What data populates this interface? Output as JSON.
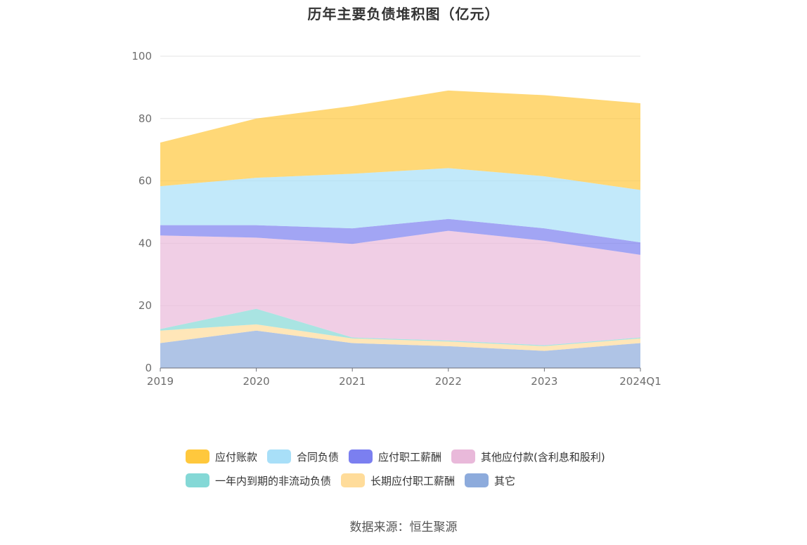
{
  "title": "历年主要负债堆积图（亿元）",
  "source": "数据来源：恒生聚源",
  "colors": {
    "应付账款": "#ffc83d",
    "合同负债": "#a8dff8",
    "应付职工薪酬": "#7b7ff0",
    "其他应付款": "#e9b9da",
    "一年内到期的非流动负债": "#84d8d6",
    "长期应付职工薪酬": "#ffdc9a",
    "其它": "#8dabdc"
  },
  "legend": [
    {
      "label": "应付账款",
      "color": "#ffc83d"
    },
    {
      "label": "合同负债",
      "color": "#a8dff8"
    },
    {
      "label": "应付职工薪酬",
      "color": "#7b7ff0"
    },
    {
      "label": "其他应付款(含利息和股利)",
      "color": "#e9b9da"
    },
    {
      "label": "一年内到期的非流动负债",
      "color": "#84d8d6"
    },
    {
      "label": "长期应付职工薪酬",
      "color": "#ffdc9a"
    },
    {
      "label": "其它",
      "color": "#8dabdc"
    }
  ],
  "chart_data": {
    "type": "area",
    "stacked": true,
    "categories": [
      "2019",
      "2020",
      "2021",
      "2022",
      "2023",
      "2024Q1"
    ],
    "ylim": [
      0,
      100
    ],
    "yticks": [
      0,
      20,
      40,
      60,
      80,
      100
    ],
    "grid": true,
    "legend_position": "bottom",
    "series": [
      {
        "name": "其它",
        "values": [
          8.0,
          12.0,
          8.0,
          7.0,
          5.5,
          8.0
        ]
      },
      {
        "name": "长期应付职工薪酬",
        "values": [
          4.0,
          2.0,
          1.5,
          1.5,
          1.5,
          1.5
        ]
      },
      {
        "name": "一年内到期的非流动负债",
        "values": [
          0.5,
          5.0,
          0.3,
          0.3,
          0.3,
          0.3
        ]
      },
      {
        "name": "其他应付款(含利息和股利)",
        "values": [
          30.0,
          22.8,
          30.0,
          35.2,
          33.5,
          26.5
        ]
      },
      {
        "name": "应付职工薪酬",
        "values": [
          3.3,
          4.0,
          5.0,
          3.8,
          4.0,
          4.0
        ]
      },
      {
        "name": "合同负债",
        "values": [
          12.5,
          15.2,
          17.5,
          16.3,
          16.7,
          16.8
        ]
      },
      {
        "name": "应付账款",
        "values": [
          14.0,
          19.0,
          21.7,
          24.9,
          26.0,
          27.8
        ]
      }
    ]
  }
}
